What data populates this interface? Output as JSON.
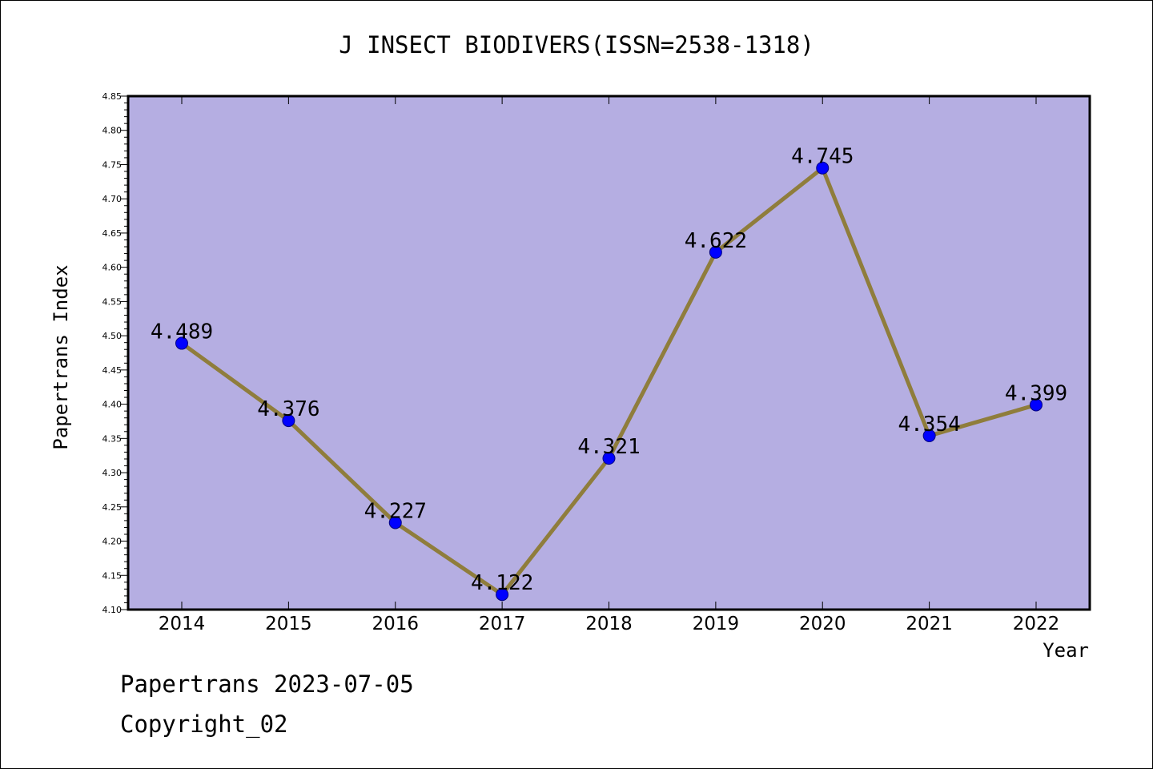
{
  "chart_data": {
    "type": "line",
    "title": "J INSECT BIODIVERS(ISSN=2538-1318)",
    "xlabel": "Year",
    "ylabel": "Papertrans Index",
    "categories": [
      "2014",
      "2015",
      "2016",
      "2017",
      "2018",
      "2019",
      "2020",
      "2021",
      "2022"
    ],
    "series": [
      {
        "values": [
          4.489,
          4.376,
          4.227,
          4.122,
          4.321,
          4.622,
          4.745,
          4.354,
          4.399
        ],
        "labels": [
          "4.489",
          "4.376",
          "4.227",
          "4.122",
          "4.321",
          "4.622",
          "4.745",
          "4.354",
          "4.399"
        ]
      }
    ],
    "ylim": [
      4.1,
      4.85
    ],
    "yticks": [
      "4.10",
      "4.15",
      "4.20",
      "4.25",
      "4.30",
      "4.35",
      "4.40",
      "4.45",
      "4.50",
      "4.55",
      "4.60",
      "4.65",
      "4.70",
      "4.75",
      "4.80",
      "4.85"
    ],
    "grid": false,
    "colors": {
      "plot_background": "#b5aee2",
      "line": "#8f7d3c",
      "marker": "#0000ff",
      "axis": "#000000"
    }
  },
  "footer": {
    "line1": "Papertrans 2023-07-05",
    "line2": "Copyright_02"
  }
}
